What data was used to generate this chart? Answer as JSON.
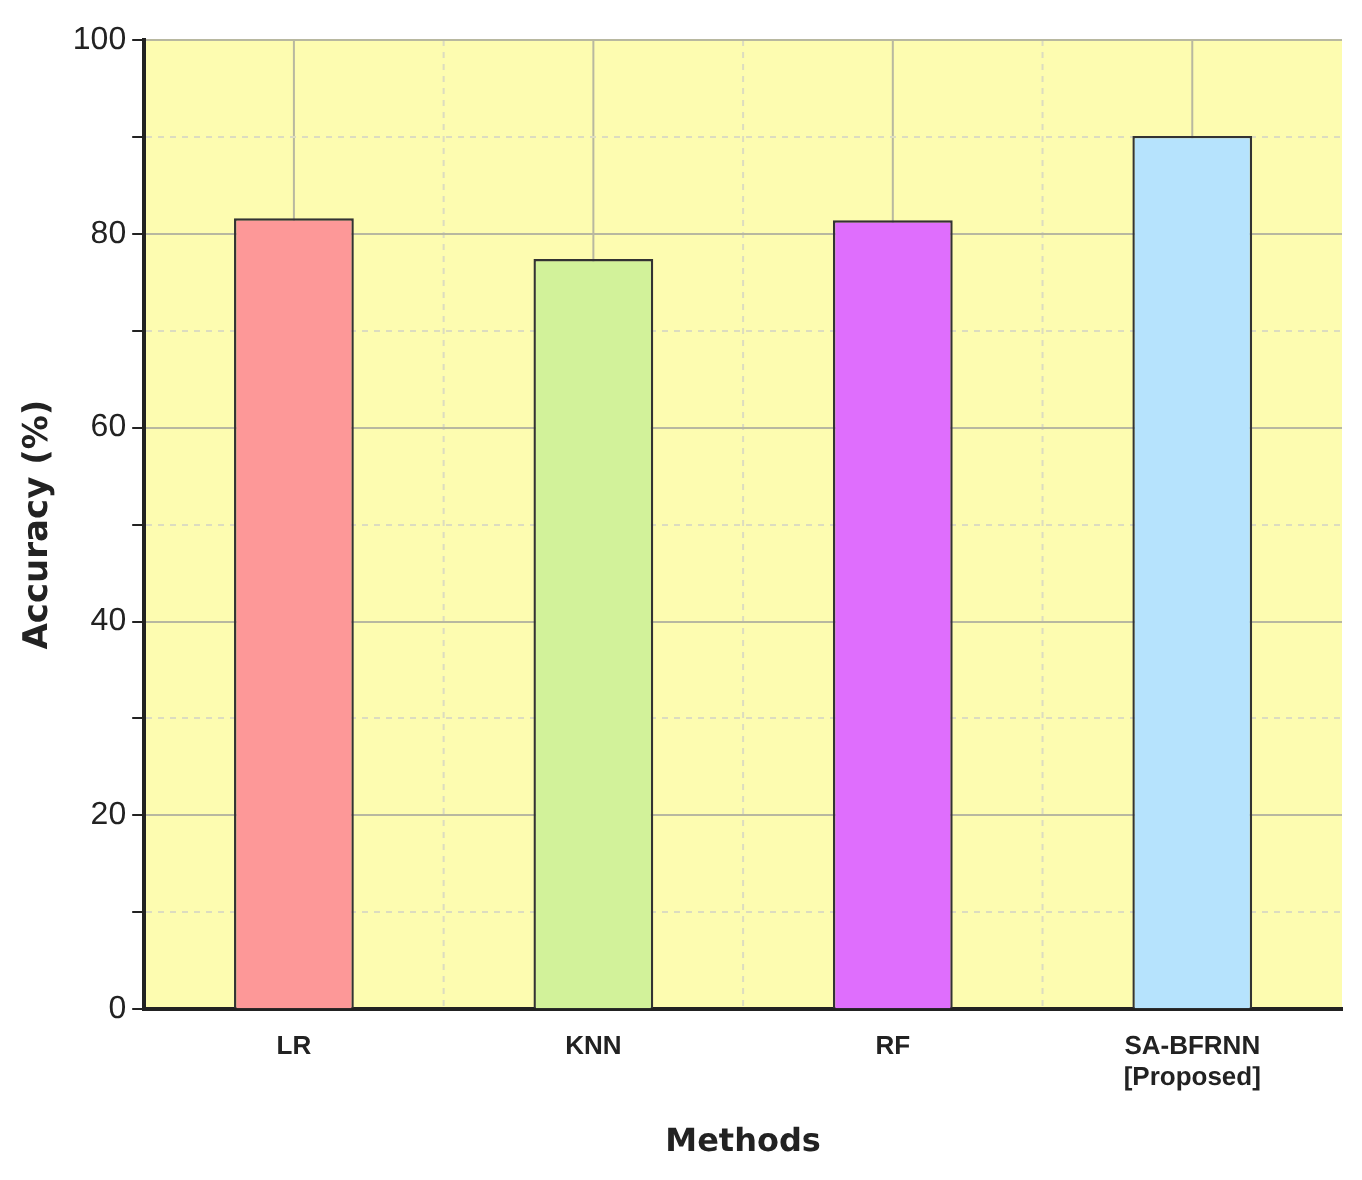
{
  "chart_data": {
    "type": "bar",
    "xlabel": "Methods",
    "ylabel": "Accuracy (%)",
    "categories": [
      "LR",
      "KNN",
      "RF",
      "SA-BFRNN\n[Proposed]"
    ],
    "values": [
      81.6,
      77.4,
      81.4,
      90.1
    ],
    "colors": [
      "#fd9898",
      "#d2f29a",
      "#df6efd",
      "#b6e3fd"
    ],
    "ylim": [
      0,
      100
    ],
    "yticks": [
      0,
      {
        "value": 10,
        "label": null
      },
      20,
      {
        "value": 30,
        "label": null
      },
      40,
      {
        "value": 50,
        "label": null
      },
      60,
      {
        "value": 70,
        "label": null
      },
      80,
      {
        "value": 90,
        "label": null
      },
      100
    ],
    "grid": true
  }
}
